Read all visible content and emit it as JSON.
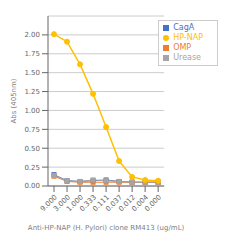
{
  "chart_data": {
    "type": "line",
    "xlabel": "Anti-HP-NAP (H. Pylori) clone RM413 (ug/mL)",
    "ylabel": "Abs (405nm)",
    "categories": [
      "9.000",
      "3.000",
      "1.000",
      "0.333",
      "0.111",
      "0.037",
      "0.012",
      "0.004",
      "0.000"
    ],
    "series": [
      {
        "name": "CagA",
        "color": "#4472C4",
        "marker": "square",
        "values": [
          0.15,
          0.07,
          0.06,
          0.07,
          0.08,
          0.06,
          0.05,
          0.05,
          0.05
        ]
      },
      {
        "name": "OMP",
        "color": "#ED7D31",
        "marker": "square",
        "values": [
          0.13,
          0.06,
          0.05,
          0.05,
          0.05,
          0.05,
          0.05,
          0.05,
          0.05
        ]
      },
      {
        "name": "Urease",
        "color": "#A5A5A5",
        "marker": "square",
        "values": [
          0.14,
          0.07,
          0.06,
          0.08,
          0.07,
          0.06,
          0.05,
          0.05,
          0.05
        ]
      },
      {
        "name": "HP-NAP",
        "color": "#FFC000",
        "marker": "circle",
        "values": [
          2.01,
          1.91,
          1.61,
          1.22,
          0.78,
          0.33,
          0.12,
          0.08,
          0.07
        ]
      }
    ],
    "ylim": [
      0,
      2.25
    ],
    "yticks": [
      {
        "value": 0,
        "label": "0.00"
      },
      {
        "value": 0.25,
        "label": "0.25"
      },
      {
        "value": 0.5,
        "label": "0.50"
      },
      {
        "value": 0.75,
        "label": "0.75"
      },
      {
        "value": 1,
        "label": "1.00"
      },
      {
        "value": 1.25,
        "label": "1.25"
      },
      {
        "value": 1.5,
        "label": "1.50"
      },
      {
        "value": 1.75,
        "label": "1.75"
      },
      {
        "value": 2,
        "label": "2.00"
      }
    ],
    "grid": true,
    "legend": "upper right"
  }
}
